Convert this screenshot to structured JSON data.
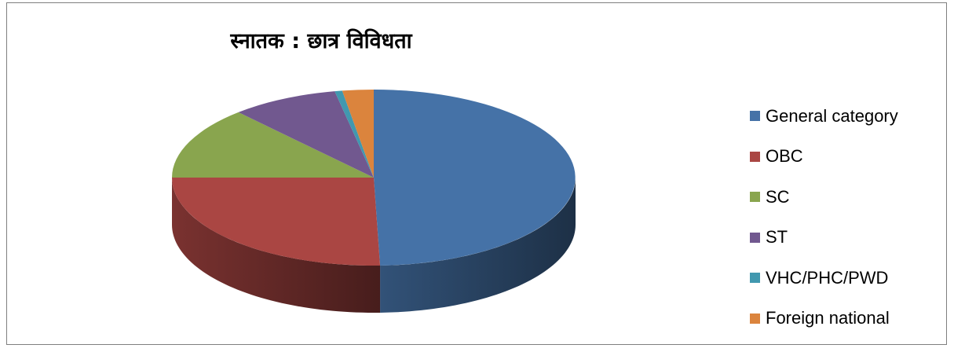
{
  "chart_data": {
    "type": "pie",
    "title": "स्नातक : छात्र विविधता",
    "categories": [
      "General category",
      "OBC",
      "SC",
      "ST",
      "VHC/PHC/PWD",
      "Foreign national"
    ],
    "values": [
      49.5,
      25.5,
      13.3,
      8.6,
      0.6,
      2.5
    ],
    "unit": "%",
    "legend_position": "right",
    "colors": [
      "#4572a7",
      "#aa4643",
      "#89a54e",
      "#71588f",
      "#4198af",
      "#db843d"
    ],
    "style": "3d-tilted"
  }
}
